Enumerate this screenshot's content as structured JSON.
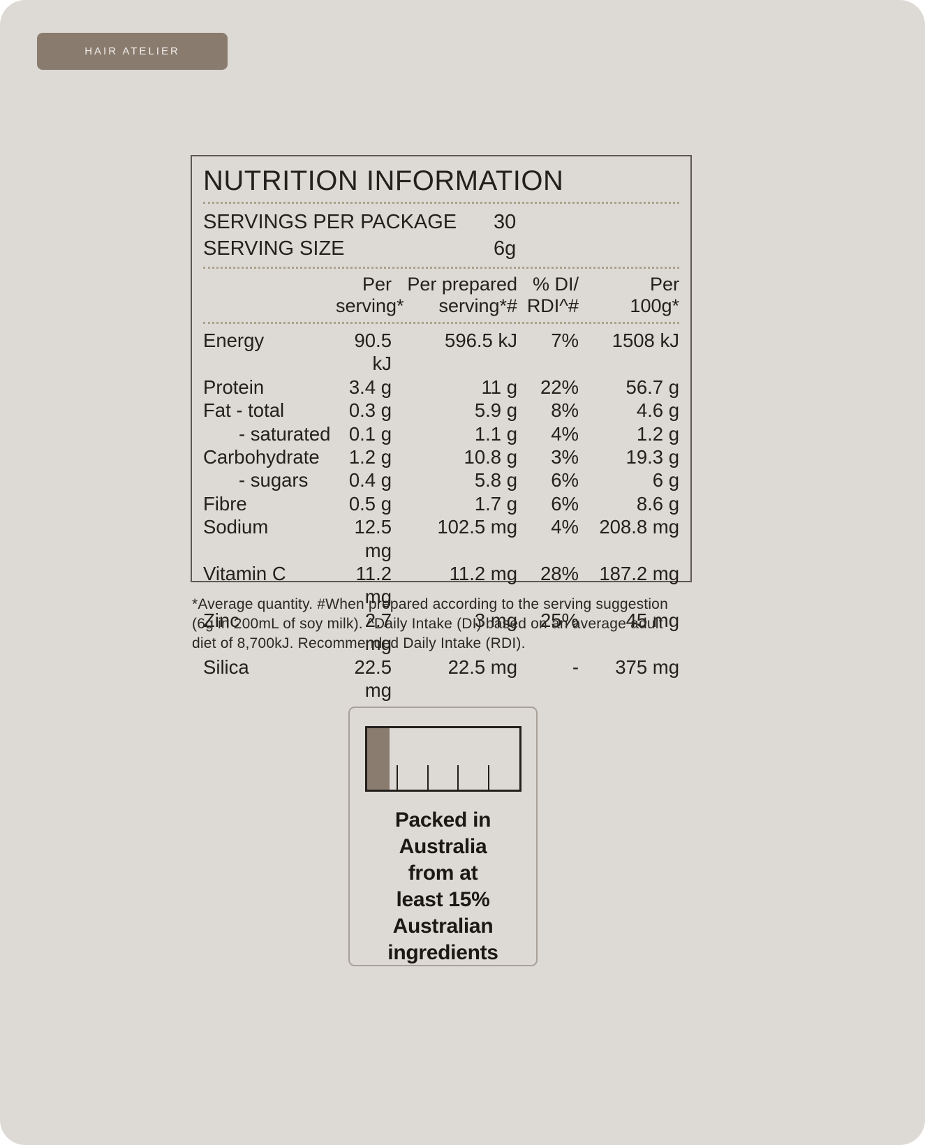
{
  "brand": {
    "label": "HAIR ATELIER"
  },
  "panel": {
    "title": "NUTRITION INFORMATION",
    "servings_per_package": {
      "label": "SERVINGS PER PACKAGE",
      "value": "30"
    },
    "serving_size": {
      "label": "SERVING SIZE",
      "value": "6g"
    },
    "columns": {
      "per_serving": "Per\nserving*",
      "per_prepared": "Per prepared\nserving*#",
      "di_rdi": "% DI/\nRDI^#",
      "per_100g": "Per\n100g*"
    },
    "rows": [
      {
        "name": "Energy",
        "per_serving": "90.5 kJ",
        "per_prepared": "596.5 kJ",
        "di": "7%",
        "per_100g": "1508 kJ"
      },
      {
        "name": "Protein",
        "per_serving": "3.4 g",
        "per_prepared": "11 g",
        "di": "22%",
        "per_100g": "56.7 g"
      },
      {
        "name": "Fat - total",
        "per_serving": "0.3 g",
        "per_prepared": "5.9 g",
        "di": "8%",
        "per_100g": "4.6 g"
      },
      {
        "name": "- saturated",
        "per_serving": "0.1 g",
        "per_prepared": "1.1 g",
        "di": "4%",
        "per_100g": "1.2 g"
      },
      {
        "name": "Carbohydrate",
        "per_serving": "1.2 g",
        "per_prepared": "10.8 g",
        "di": "3%",
        "per_100g": "19.3 g"
      },
      {
        "name": "- sugars",
        "per_serving": "0.4 g",
        "per_prepared": "5.8 g",
        "di": "6%",
        "per_100g": "6 g"
      },
      {
        "name": "Fibre",
        "per_serving": "0.5 g",
        "per_prepared": "1.7 g",
        "di": "6%",
        "per_100g": "8.6 g"
      },
      {
        "name": "Sodium",
        "per_serving": "12.5 mg",
        "per_prepared": "102.5 mg",
        "di": "4%",
        "per_100g": "208.8 mg"
      },
      {
        "name": "Vitamin C",
        "per_serving": "11.2 mg",
        "per_prepared": "11.2 mg",
        "di": "28%",
        "per_100g": "187.2 mg"
      },
      {
        "name": "Zinc",
        "per_serving": "2.7 mg",
        "per_prepared": "3 mg",
        "di": "25%",
        "per_100g": "45 mg"
      },
      {
        "name": "Silica",
        "per_serving": "22.5 mg",
        "per_prepared": "22.5 mg",
        "di": "-",
        "per_100g": "375 mg"
      }
    ]
  },
  "footnote": "*Average quantity. #When prepared according to the serving suggestion (6g in 200mL of soy milk). ^Daily Intake (DI) based on an average adult diet of 8,700kJ. Recommended Daily Intake (RDI).",
  "origin_mark": {
    "text": "Packed in\nAustralia\nfrom at\nleast 15%\nAustralian\ningredients",
    "bar_fill_percent": 15,
    "tick_positions_percent": [
      20,
      40,
      60,
      80
    ]
  },
  "colors": {
    "page_bg": "#DDD9D4",
    "badge_bg": "#897B6E",
    "text": "#23201E",
    "dotted_rule": "#ABA28C",
    "bar_fill": "#8A7D70"
  }
}
